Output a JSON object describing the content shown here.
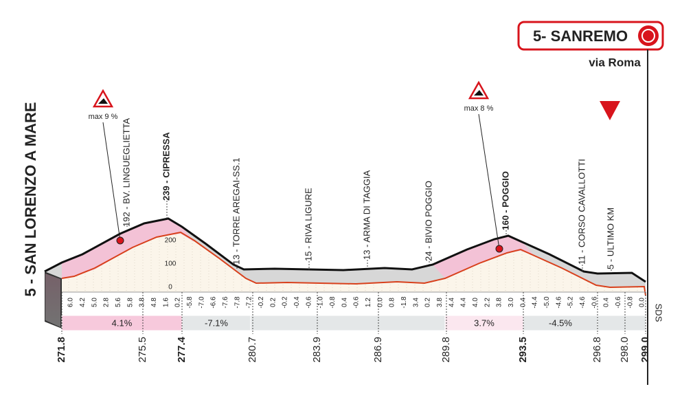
{
  "finish": {
    "name": "5- SANREMO",
    "street": "via Roma"
  },
  "start": {
    "name": "5 - SAN LORENZO A MARE"
  },
  "climbs": [
    {
      "max": "max 9 %"
    },
    {
      "max": "max 8 %"
    }
  ],
  "landmarks": [
    "192 - BV. LINGUEGLIETTA",
    "239 - CIPRESSA",
    "13 - TORRE AREGAI-SS.1",
    "15 - RIVA LIGURE",
    "13 - ARMA DI TAGGIA",
    "24 - BIVIO POGGIO",
    "160 - POGGIO",
    "11 - CORSO CAVALLOTTI",
    "5 - ULTIMO KM"
  ],
  "altitude_scale": [
    "200",
    "100",
    "0"
  ],
  "gradients": [
    "6.0",
    "4.2",
    "5.0",
    "2.8",
    "5.6",
    "5.8",
    "3.8",
    "4.8",
    "1.6",
    "0.2",
    "-5.8",
    "-7.0",
    "-6.6",
    "-7.6",
    "-7.8",
    "-7.2",
    "-0.2",
    "0.2",
    "-0.2",
    "-0.4",
    "-0.6",
    "-1.0",
    "-0.8",
    "0.4",
    "-0.6",
    "1.2",
    "0.0",
    "0.8",
    "-1.8",
    "3.4",
    "0.2",
    "3.8",
    "4.4",
    "4.4",
    "4.0",
    "2.2",
    "3.8",
    "3.0",
    "0.4",
    "-4.4",
    "-5.0",
    "-4.6",
    "-5.2",
    "-4.6",
    "-0.6",
    "0.4",
    "-0.6",
    "-0.8",
    "0.0"
  ],
  "sections": [
    "4.1%",
    "-7.1%",
    "3.7%",
    "-4.5%"
  ],
  "km": [
    "271.8",
    "275.5",
    "277.4",
    "280.7",
    "283.9",
    "286.9",
    "289.8",
    "293.5",
    "296.8",
    "298.0",
    "299.0"
  ],
  "logo": "SDS"
}
